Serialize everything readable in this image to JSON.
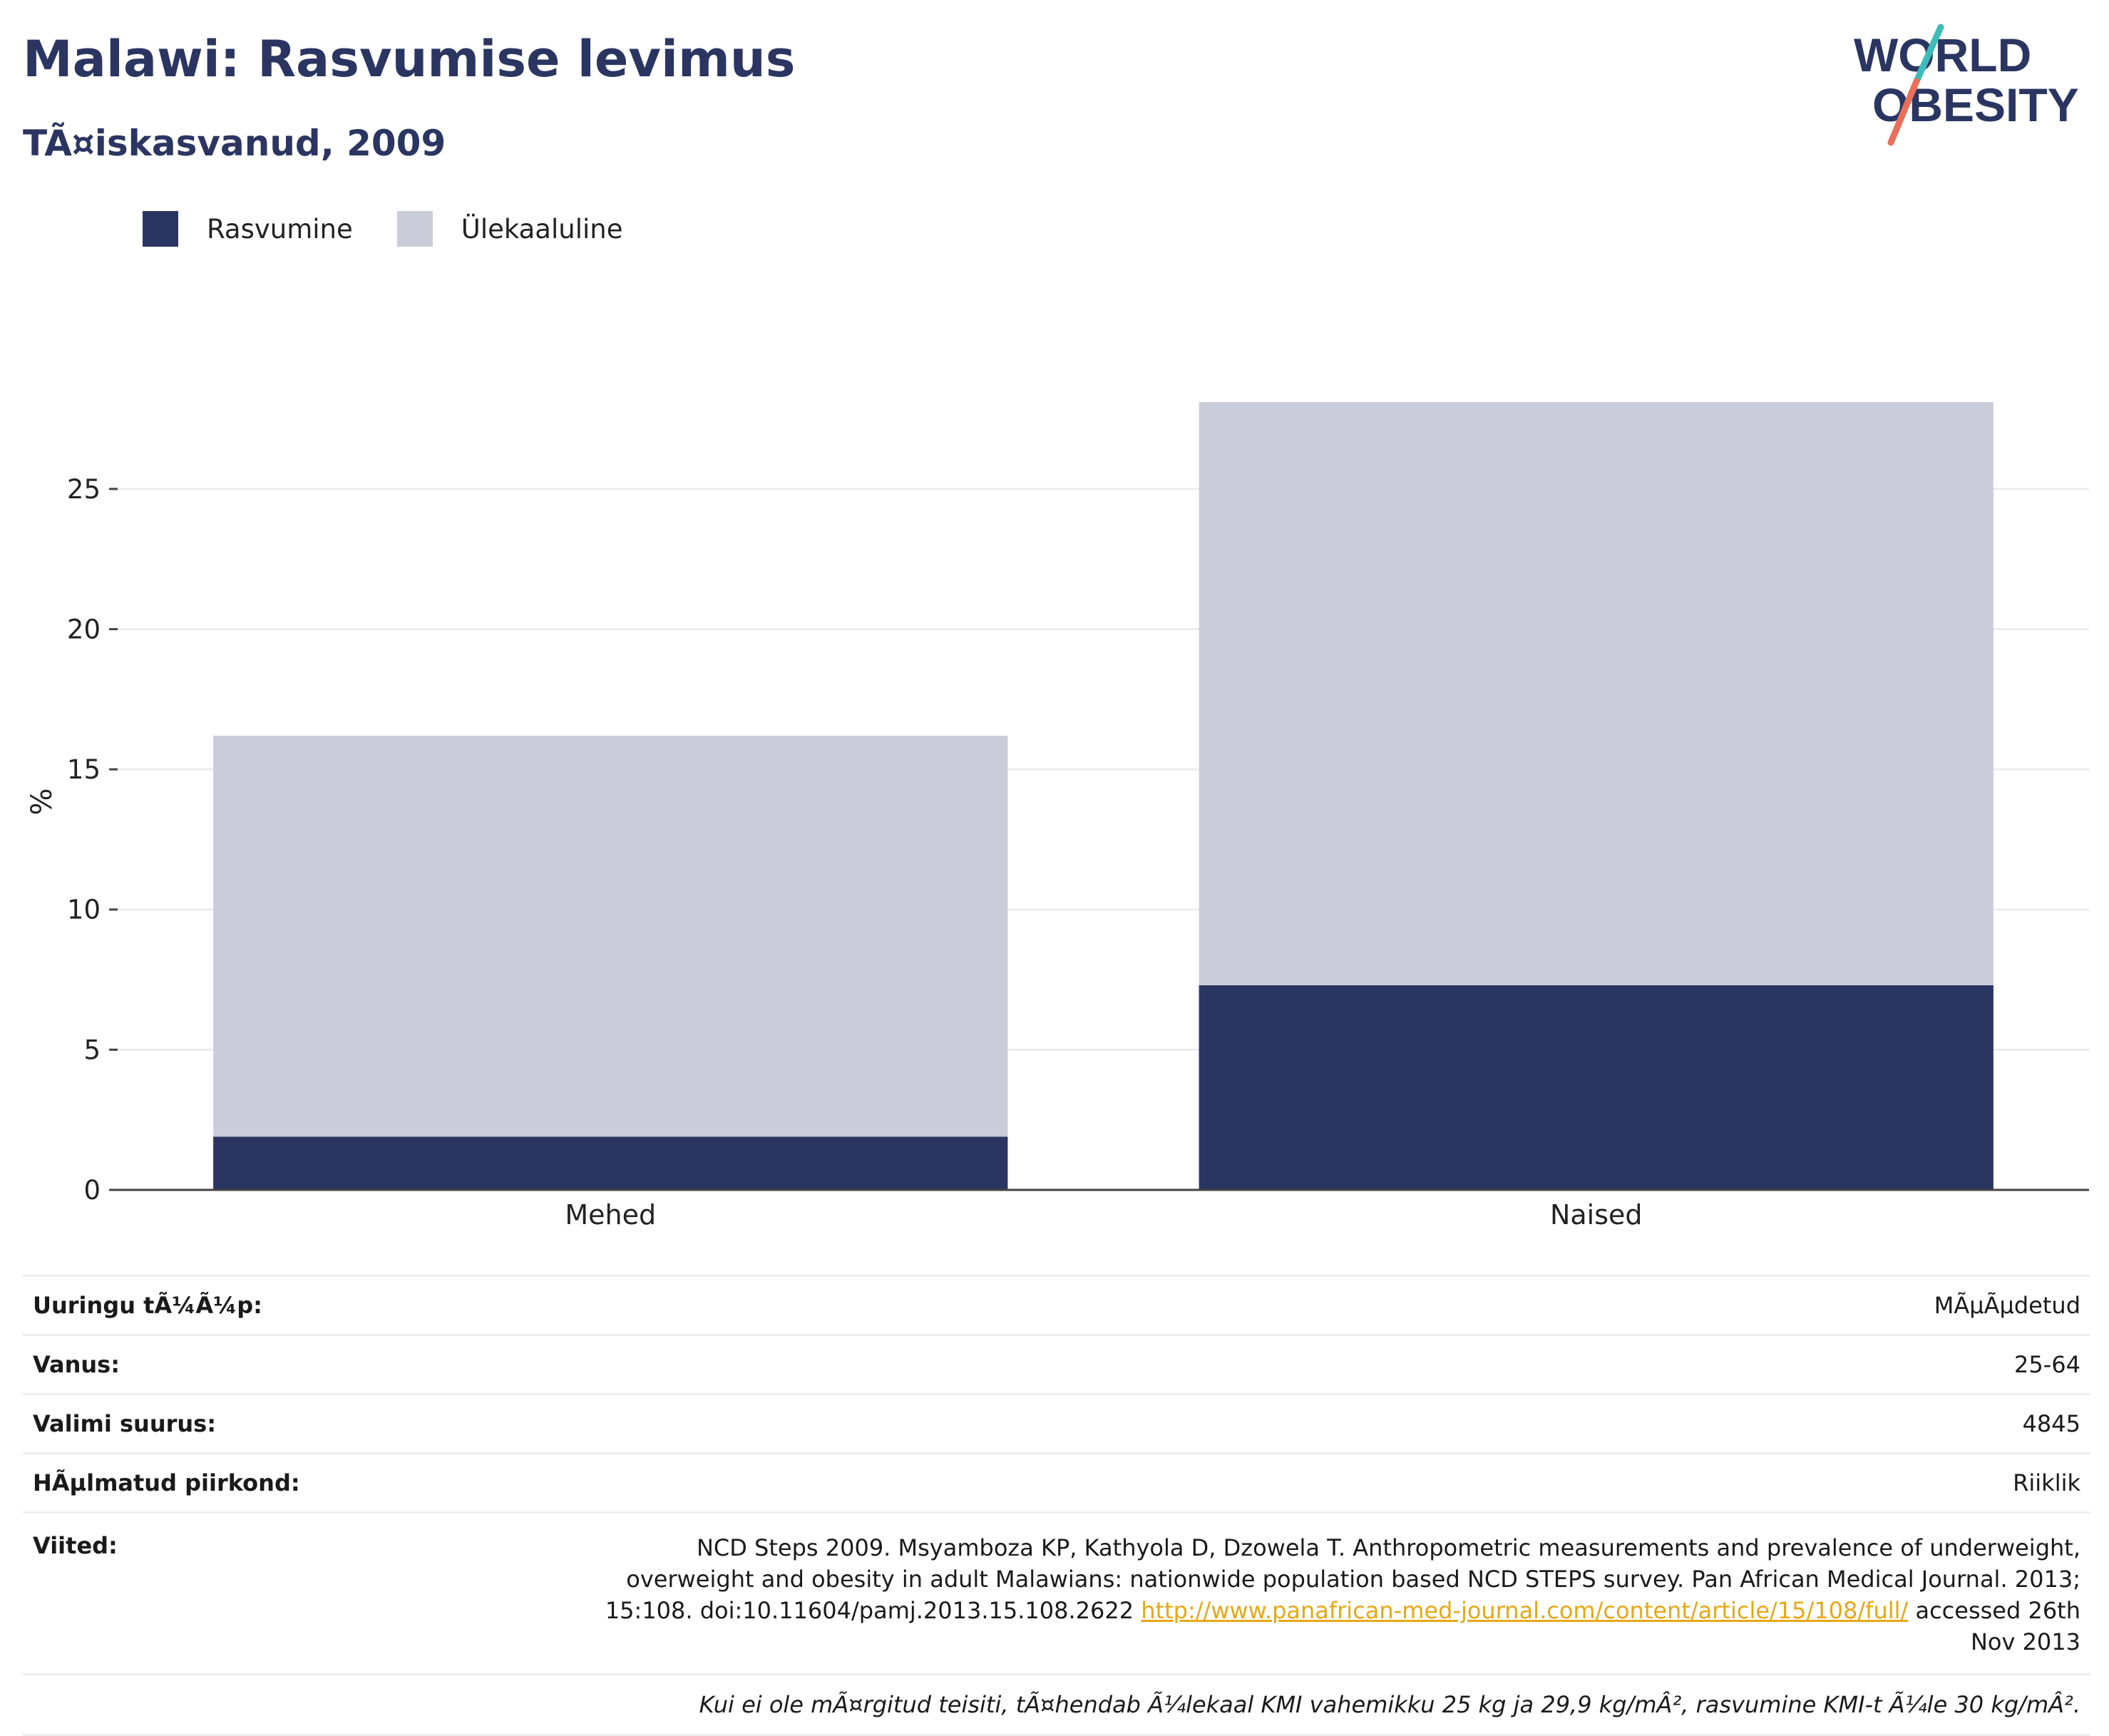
{
  "header": {
    "title": "Malawi: Rasvumise levimus",
    "subtitle": "TÃ¤iskasvanud, 2009"
  },
  "logo": {
    "line1": "WORLD",
    "line2": "OBESITY",
    "colors": {
      "text": "#2b3562",
      "slash_teal": "#3dbcb8",
      "slash_red": "#e8705a"
    }
  },
  "chart_data": {
    "type": "bar",
    "stacked": true,
    "categories": [
      "Mehed",
      "Naised"
    ],
    "series": [
      {
        "name": "Rasvumine",
        "values": [
          1.9,
          7.3
        ],
        "color": "#2b3562"
      },
      {
        "name": "Ülekaaluline",
        "values": [
          14.3,
          20.8
        ],
        "color": "#cacdd9"
      }
    ],
    "ylabel": "%",
    "ylim": [
      0,
      28.2
    ],
    "yticks": [
      0,
      5,
      10,
      15,
      20,
      25
    ],
    "grid": true,
    "legend": "top-left"
  },
  "info": {
    "rows": [
      {
        "label": "Uuringu tÃ¼Ã¼p:",
        "value": "MÃµÃµdetud"
      },
      {
        "label": "Vanus:",
        "value": "25-64"
      },
      {
        "label": "Valimi suurus:",
        "value": "4845"
      },
      {
        "label": "HÃµlmatud piirkond:",
        "value": "Riiklik"
      }
    ],
    "refs_label": "Viited:",
    "refs_text": "NCD Steps 2009. Msyamboza KP, Kathyola D, Dzowela T. Anthropometric measurements and prevalence of underweight, overweight and obesity in adult Malawians: nationwide population based NCD STEPS survey. Pan African Medical Journal. 2013; 15:108. doi:10.11604/pamj.2013.15.108.2622",
    "refs_link": "http://www.panafrican-med-journal.com/content/article/15/108/full/",
    "refs_tail": "accessed 26th Nov 2013",
    "note": "Kui ei ole mÃ¤rgitud teisiti, tÃ¤hendab Ã¼lekaal KMI vahemikku 25 kg ja 29,9 kg/mÂ², rasvumine KMI-t Ã¼le 30 kg/mÂ²."
  }
}
